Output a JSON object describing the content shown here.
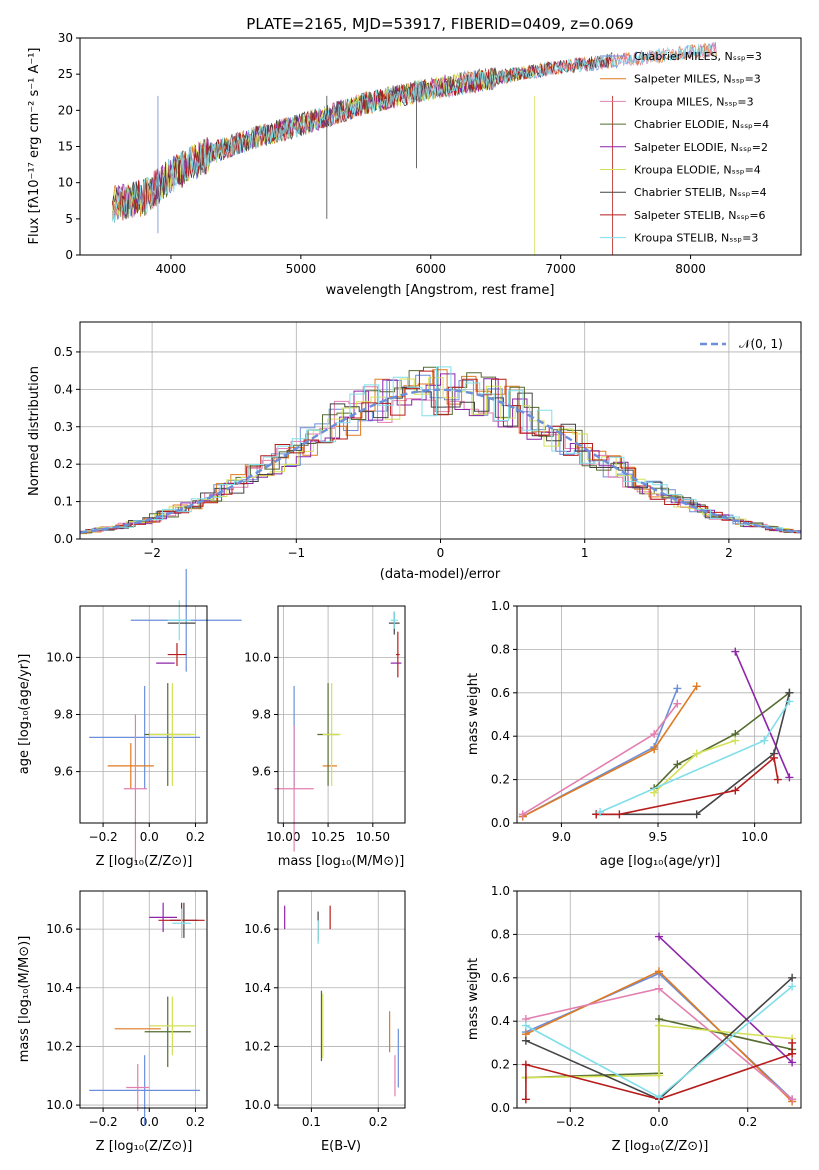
{
  "palette": [
    "#6b8fdb",
    "#e07a22",
    "#e27fb0",
    "#556b2f",
    "#8e24aa",
    "#d4e157",
    "#444444",
    "#b71c1c",
    "#80deea"
  ],
  "spectrum": {
    "title": "PLATE=2165, MJD=53917, FIBERID=0409, z=0.069",
    "xlabel": "wavelength [Angstrom, rest frame]",
    "ylabel": "Flux [fλ10⁻¹⁷ erg cm⁻² s⁻¹ A⁻¹]",
    "xticks": [
      "4000",
      "5000",
      "6000",
      "7000",
      "8000"
    ],
    "yticks": [
      "0",
      "5",
      "10",
      "15",
      "20",
      "25",
      "30"
    ],
    "legend": [
      "Chabrier MILES, Nₛₛₚ=3",
      "Salpeter MILES, Nₛₛₚ=3",
      "Kroupa MILES, Nₛₛₚ=3",
      "Chabrier ELODIE, Nₛₛₚ=4",
      "Salpeter ELODIE, Nₛₛₚ=2",
      "Kroupa ELODIE, Nₛₛₚ=4",
      "Chabrier STELIB, Nₛₛₚ=4",
      "Salpeter STELIB, Nₛₛₚ=6",
      "Kroupa STELIB, Nₛₛₚ=3"
    ]
  },
  "residual": {
    "xlabel": "(data-model)/error",
    "ylabel": "Normed distribution",
    "xticks": [
      "−2",
      "−1",
      "0",
      "1",
      "2"
    ],
    "yticks": [
      "0.0",
      "0.1",
      "0.2",
      "0.3",
      "0.4",
      "0.5"
    ],
    "legend": "𝒩(0, 1)"
  },
  "panels": {
    "z_age": {
      "xlabel": "Z [log₁₀(Z/Z⊙)]",
      "ylabel": "age  [log₁₀(age/yr)]",
      "xticks": [
        "−0.2",
        "0.0",
        "0.2"
      ],
      "yticks": [
        "9.6",
        "9.8",
        "10.0"
      ]
    },
    "mass_age": {
      "xlabel": "mass [log₁₀(M/M⊙)]",
      "xticks": [
        "10.00",
        "10.25",
        "10.50"
      ],
      "yticks": [
        "9.6",
        "9.8",
        "10.0"
      ]
    },
    "age_weight": {
      "xlabel": "age  [log₁₀(age/yr)]",
      "ylabel": "mass weight",
      "xticks": [
        "9.0",
        "9.5",
        "10.0"
      ],
      "yticks": [
        "0.0",
        "0.2",
        "0.4",
        "0.6",
        "0.8",
        "1.0"
      ]
    },
    "z_mass": {
      "xlabel": "Z [log₁₀(Z/Z⊙)]",
      "ylabel": "mass [log₁₀(M/M⊙)]",
      "xticks": [
        "−0.2",
        "0.0",
        "0.2"
      ],
      "yticks": [
        "10.0",
        "10.2",
        "10.4",
        "10.6"
      ]
    },
    "ebv_mass": {
      "xlabel": "E(B-V)",
      "xticks": [
        "0.1",
        "0.2"
      ],
      "yticks": [
        "10.0",
        "10.2",
        "10.4",
        "10.6"
      ]
    },
    "z_weight": {
      "xlabel": "Z [log₁₀(Z/Z⊙)]",
      "ylabel": "mass weight",
      "xticks": [
        "−0.2",
        "0.0",
        "0.2"
      ],
      "yticks": [
        "0.0",
        "0.2",
        "0.4",
        "0.6",
        "0.8",
        "1.0"
      ]
    }
  },
  "chart_data": [
    {
      "type": "line",
      "title": "PLATE=2165, MJD=53917, FIBERID=0409, z=0.069",
      "xlabel": "wavelength [Angstrom, rest frame]",
      "xlim": [
        3300,
        8850
      ],
      "ylim": [
        0,
        30
      ],
      "series": [
        {
          "name": "Chabrier MILES, N_SSP=3",
          "x": [
            3550,
            3800,
            4000,
            4300,
            4600,
            5000,
            5500,
            6000,
            6500,
            7000,
            7500,
            8200
          ],
          "y": [
            7,
            8,
            11,
            14,
            16,
            18,
            21,
            23,
            24.5,
            26,
            27,
            28.5
          ]
        },
        {
          "name": "Salpeter MILES, N_SSP=3",
          "x": [
            3550,
            3800,
            4000,
            4300,
            4600,
            5000,
            5500,
            6000,
            6500,
            7000,
            7500,
            8200
          ],
          "y": [
            7,
            8,
            11,
            14,
            16,
            18,
            21,
            23,
            24.5,
            26,
            27,
            28.5
          ]
        },
        {
          "name": "Kroupa MILES, N_SSP=3",
          "x": [
            3550,
            3800,
            4000,
            4300,
            4600,
            5000,
            5500,
            6000,
            6500,
            7000,
            7500,
            8200
          ],
          "y": [
            7,
            8,
            11,
            14,
            16,
            18,
            21,
            23,
            24.5,
            26,
            27,
            28.5
          ]
        },
        {
          "name": "Chabrier ELODIE, N_SSP=4",
          "x": [
            3550,
            3800,
            4000,
            4300,
            4600,
            5000,
            5500,
            6000,
            6500,
            6800
          ],
          "y": [
            7,
            8,
            11,
            14,
            16,
            18,
            21,
            23,
            24.5,
            25.5
          ]
        },
        {
          "name": "Salpeter ELODIE, N_SSP=2",
          "x": [
            3550,
            3800,
            4000,
            4300,
            4600,
            5000,
            5500,
            6000,
            6500,
            6800
          ],
          "y": [
            7,
            8,
            11,
            14,
            16,
            18,
            21,
            23,
            24.5,
            25.5
          ]
        },
        {
          "name": "Kroupa ELODIE, N_SSP=4",
          "x": [
            3550,
            3800,
            4000,
            4300,
            4600,
            5000,
            5500,
            6000,
            6500,
            6800
          ],
          "y": [
            7,
            8,
            11,
            14,
            16,
            18,
            21,
            23,
            24.5,
            25.5
          ]
        },
        {
          "name": "Chabrier STELIB, N_SSP=4",
          "x": [
            3550,
            3800,
            4000,
            4300,
            4600,
            5000,
            5500,
            6000,
            6500,
            7000,
            7400
          ],
          "y": [
            7,
            8,
            11,
            14,
            16,
            18,
            21,
            23,
            24.5,
            26,
            27
          ]
        },
        {
          "name": "Salpeter STELIB, N_SSP=6",
          "x": [
            3550,
            3800,
            4000,
            4300,
            4600,
            5000,
            5500,
            6000,
            6500,
            7000,
            7400
          ],
          "y": [
            7,
            8,
            11,
            14,
            16,
            18,
            21,
            23,
            24.5,
            26,
            27
          ]
        },
        {
          "name": "Kroupa STELIB, N_SSP=3",
          "x": [
            3550,
            3800,
            4000,
            4300,
            4600,
            5000,
            5500,
            6000,
            6500,
            7000,
            7500,
            8200
          ],
          "y": [
            7,
            8,
            11,
            14,
            16,
            18,
            21,
            23,
            24.5,
            26,
            27,
            28.5
          ]
        }
      ]
    },
    {
      "type": "line",
      "xlabel": "(data-model)/error",
      "ylabel": "Normed distribution",
      "xlim": [
        -2.5,
        2.5
      ],
      "ylim": [
        0,
        0.58
      ],
      "series": [
        {
          "name": "𝒩(0, 1)",
          "function": "normal_pdf",
          "mean": 0,
          "sigma": 1
        }
      ]
    },
    {
      "type": "scatter",
      "xlabel": "Z [log₁₀(Z/Z⊙)]",
      "ylabel": "age  [log₁₀(age/yr)]",
      "xlim": [
        -0.3,
        0.25
      ],
      "ylim": [
        9.42,
        10.18
      ],
      "series": [
        {
          "name": "Chabrier MILES, N_SSP=3",
          "x": [
            -0.02,
            0.16
          ],
          "y": [
            9.72,
            10.13
          ]
        },
        {
          "name": "Salpeter MILES, N_SSP=3",
          "x": [
            -0.08
          ],
          "y": [
            9.62
          ]
        },
        {
          "name": "Kroupa MILES, N_SSP=3",
          "x": [
            -0.06
          ],
          "y": [
            9.54
          ]
        },
        {
          "name": "Chabrier ELODIE, N_SSP=4",
          "x": [
            0.08
          ],
          "y": [
            9.73
          ]
        },
        {
          "name": "Salpeter ELODIE, N_SSP=2",
          "x": [
            0.07
          ],
          "y": [
            9.98
          ]
        },
        {
          "name": "Kroupa ELODIE, N_SSP=4",
          "x": [
            0.1
          ],
          "y": [
            9.73
          ]
        },
        {
          "name": "Chabrier STELIB, N_SSP=4",
          "x": [
            0.14
          ],
          "y": [
            10.12
          ]
        },
        {
          "name": "Salpeter STELIB, N_SSP=6",
          "x": [
            0.12
          ],
          "y": [
            10.01
          ]
        },
        {
          "name": "Kroupa STELIB, N_SSP=3",
          "x": [
            0.13
          ],
          "y": [
            10.13
          ]
        }
      ]
    },
    {
      "type": "scatter",
      "xlabel": "mass [log₁₀(M/M⊙)]",
      "xlim": [
        9.97,
        10.68
      ],
      "ylim": [
        9.42,
        10.18
      ],
      "series": [
        {
          "name": "Chabrier MILES, N_SSP=3",
          "x": [
            10.06
          ],
          "y": [
            9.72
          ]
        },
        {
          "name": "Salpeter MILES, N_SSP=3",
          "x": [
            10.26
          ],
          "y": [
            9.62
          ]
        },
        {
          "name": "Kroupa MILES, N_SSP=3",
          "x": [
            10.06
          ],
          "y": [
            9.54
          ]
        },
        {
          "name": "Chabrier ELODIE, N_SSP=4",
          "x": [
            10.25
          ],
          "y": [
            9.73
          ]
        },
        {
          "name": "Salpeter ELODIE, N_SSP=2",
          "x": [
            10.63
          ],
          "y": [
            9.98
          ]
        },
        {
          "name": "Kroupa ELODIE, N_SSP=4",
          "x": [
            10.27
          ],
          "y": [
            9.73
          ]
        },
        {
          "name": "Chabrier STELIB, N_SSP=4",
          "x": [
            10.62
          ],
          "y": [
            10.12
          ]
        },
        {
          "name": "Salpeter STELIB, N_SSP=6",
          "x": [
            10.64
          ],
          "y": [
            10.01
          ]
        },
        {
          "name": "Kroupa STELIB, N_SSP=3",
          "x": [
            10.62
          ],
          "y": [
            10.13
          ]
        }
      ]
    },
    {
      "type": "line",
      "xlabel": "age  [log₁₀(age/yr)]",
      "ylabel": "mass weight",
      "xlim": [
        8.77,
        10.24
      ],
      "ylim": [
        0,
        1
      ],
      "series": [
        {
          "name": "Chabrier MILES, N_SSP=3",
          "x": [
            8.8,
            9.48,
            9.6
          ],
          "y": [
            0.03,
            0.35,
            0.62
          ]
        },
        {
          "name": "Salpeter MILES, N_SSP=3",
          "x": [
            8.8,
            9.48,
            9.7
          ],
          "y": [
            0.03,
            0.34,
            0.63
          ]
        },
        {
          "name": "Kroupa MILES, N_SSP=3",
          "x": [
            8.8,
            9.48,
            9.6
          ],
          "y": [
            0.04,
            0.41,
            0.55
          ]
        },
        {
          "name": "Chabrier ELODIE, N_SSP=4",
          "x": [
            9.48,
            9.6,
            9.9,
            10.18
          ],
          "y": [
            0.16,
            0.27,
            0.41,
            0.6
          ]
        },
        {
          "name": "Salpeter ELODIE, N_SSP=2",
          "x": [
            9.9,
            10.18
          ],
          "y": [
            0.79,
            0.21
          ]
        },
        {
          "name": "Kroupa ELODIE, N_SSP=4",
          "x": [
            9.48,
            9.7,
            9.9
          ],
          "y": [
            0.14,
            0.32,
            0.38
          ]
        },
        {
          "name": "Chabrier STELIB, N_SSP=4",
          "x": [
            9.18,
            9.7,
            10.1,
            10.18
          ],
          "y": [
            0.04,
            0.04,
            0.32,
            0.6
          ]
        },
        {
          "name": "Salpeter STELIB, N_SSP=6",
          "x": [
            9.18,
            9.3,
            9.9,
            10.1,
            10.12
          ],
          "y": [
            0.04,
            0.04,
            0.15,
            0.3,
            0.2
          ]
        },
        {
          "name": "Kroupa STELIB, N_SSP=3",
          "x": [
            9.2,
            10.05,
            10.18
          ],
          "y": [
            0.05,
            0.38,
            0.56
          ]
        }
      ]
    },
    {
      "type": "scatter",
      "xlabel": "Z [log₁₀(Z/Z⊙)]",
      "ylabel": "mass [log₁₀(M/M⊙)]",
      "xlim": [
        -0.3,
        0.25
      ],
      "ylim": [
        9.99,
        10.73
      ],
      "series": [
        {
          "name": "Chabrier MILES, N_SSP=3",
          "x": [
            -0.02
          ],
          "y": [
            10.05
          ]
        },
        {
          "name": "Salpeter MILES, N_SSP=3",
          "x": [
            -0.05
          ],
          "y": [
            10.26
          ]
        },
        {
          "name": "Kroupa MILES, N_SSP=3",
          "x": [
            -0.05
          ],
          "y": [
            10.06
          ]
        },
        {
          "name": "Chabrier ELODIE, N_SSP=4",
          "x": [
            0.08
          ],
          "y": [
            10.25
          ]
        },
        {
          "name": "Salpeter ELODIE, N_SSP=2",
          "x": [
            0.06
          ],
          "y": [
            10.64
          ]
        },
        {
          "name": "Kroupa ELODIE, N_SSP=4",
          "x": [
            0.1
          ],
          "y": [
            10.27
          ]
        },
        {
          "name": "Chabrier STELIB, N_SSP=4",
          "x": [
            0.15
          ],
          "y": [
            10.63
          ]
        },
        {
          "name": "Salpeter STELIB, N_SSP=6",
          "x": [
            0.14
          ],
          "y": [
            10.63
          ]
        },
        {
          "name": "Kroupa STELIB, N_SSP=3",
          "x": [
            0.14
          ],
          "y": [
            10.62
          ]
        }
      ]
    },
    {
      "type": "scatter",
      "xlabel": "E(B-V)",
      "xlim": [
        0.05,
        0.24
      ],
      "ylim": [
        9.99,
        10.73
      ],
      "series": [
        {
          "name": "Chabrier MILES, N_SSP=3",
          "x": [
            0.23
          ],
          "y": [
            10.16
          ]
        },
        {
          "name": "Salpeter MILES, N_SSP=3",
          "x": [
            0.217
          ],
          "y": [
            10.25
          ]
        },
        {
          "name": "Kroupa MILES, N_SSP=3",
          "x": [
            0.225
          ],
          "y": [
            10.1
          ]
        },
        {
          "name": "Chabrier ELODIE, N_SSP=4",
          "x": [
            0.115
          ],
          "y": [
            10.27
          ]
        },
        {
          "name": "Salpeter ELODIE, N_SSP=2",
          "x": [
            0.06
          ],
          "y": [
            10.64
          ]
        },
        {
          "name": "Kroupa ELODIE, N_SSP=4",
          "x": [
            0.117
          ],
          "y": [
            10.27
          ]
        },
        {
          "name": "Chabrier STELIB, N_SSP=4",
          "x": [
            0.11
          ],
          "y": [
            10.61
          ]
        },
        {
          "name": "Salpeter STELIB, N_SSP=6",
          "x": [
            0.128
          ],
          "y": [
            10.64
          ]
        },
        {
          "name": "Kroupa STELIB, N_SSP=3",
          "x": [
            0.11
          ],
          "y": [
            10.59
          ]
        }
      ]
    },
    {
      "type": "line",
      "xlabel": "Z [log₁₀(Z/Z⊙)]",
      "ylabel": "mass weight",
      "xlim": [
        -0.32,
        0.32
      ],
      "ylim": [
        0,
        1
      ],
      "series": [
        {
          "name": "Chabrier MILES, N_SSP=3",
          "x": [
            -0.3,
            0.0,
            0.3
          ],
          "y": [
            0.35,
            0.62,
            0.04
          ]
        },
        {
          "name": "Salpeter MILES, N_SSP=3",
          "x": [
            -0.3,
            0.0,
            0.3
          ],
          "y": [
            0.34,
            0.63,
            0.03
          ]
        },
        {
          "name": "Kroupa MILES, N_SSP=3",
          "x": [
            -0.3,
            0.0,
            0.3
          ],
          "y": [
            0.41,
            0.55,
            0.04
          ]
        },
        {
          "name": "Chabrier ELODIE, N_SSP=4",
          "x": [
            -0.3,
            0.0,
            0.0,
            0.3
          ],
          "y": [
            0.14,
            0.16,
            0.41,
            0.27
          ]
        },
        {
          "name": "Salpeter ELODIE, N_SSP=2",
          "x": [
            0.0,
            0.3
          ],
          "y": [
            0.79,
            0.21
          ]
        },
        {
          "name": "Kroupa ELODIE, N_SSP=4",
          "x": [
            -0.3,
            0.0,
            0.0,
            0.3
          ],
          "y": [
            0.14,
            0.15,
            0.38,
            0.32
          ]
        },
        {
          "name": "Chabrier STELIB, N_SSP=4",
          "x": [
            -0.3,
            0.0,
            0.3
          ],
          "y": [
            0.31,
            0.04,
            0.6
          ]
        },
        {
          "name": "Salpeter STELIB, N_SSP=6",
          "x": [
            -0.3,
            -0.3,
            0.0,
            0.3,
            0.3
          ],
          "y": [
            0.04,
            0.2,
            0.04,
            0.25,
            0.3
          ]
        },
        {
          "name": "Kroupa STELIB, N_SSP=3",
          "x": [
            -0.3,
            0.0,
            0.3
          ],
          "y": [
            0.38,
            0.05,
            0.56
          ]
        }
      ]
    }
  ]
}
